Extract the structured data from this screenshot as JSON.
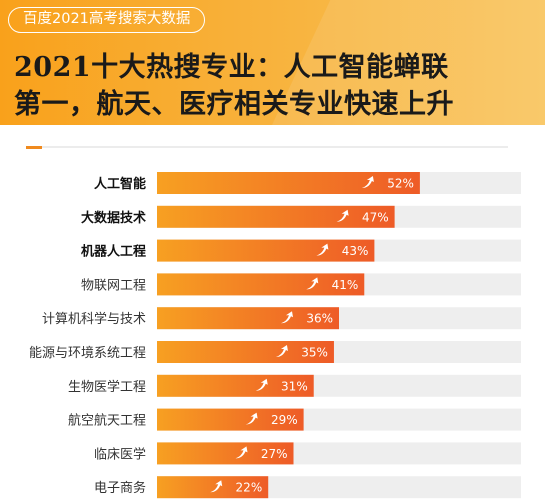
{
  "header": {
    "badge": "百度2021高考搜索大数据",
    "title_line1": "2021十大热搜专业：人工智能蝉联",
    "title_line2": "第一，航天、医疗相关专业快速上升"
  },
  "colors": {
    "bar_start": "#f7a022",
    "bar_end": "#ee5b27",
    "track": "#eeeeee",
    "header_bg": "#f9a11b",
    "accent": "#f08a1e"
  },
  "chart_data": {
    "type": "bar",
    "orientation": "horizontal",
    "categories": [
      "人工智能",
      "大数据技术",
      "机器人工程",
      "物联网工程",
      "计算机科学与技术",
      "能源与环境系统工程",
      "生物医学工程",
      "航空航天工程",
      "临床医学",
      "电子商务"
    ],
    "values": [
      52,
      47,
      43,
      41,
      36,
      35,
      31,
      29,
      27,
      22
    ],
    "value_labels": [
      "52%",
      "47%",
      "43%",
      "41%",
      "36%",
      "35%",
      "31%",
      "29%",
      "27%",
      "22%"
    ],
    "bold_categories": [
      0,
      1,
      2
    ],
    "trend_icon": "up-arrow-icon",
    "xlim": [
      0,
      72
    ],
    "grid": false,
    "legend": "none"
  }
}
